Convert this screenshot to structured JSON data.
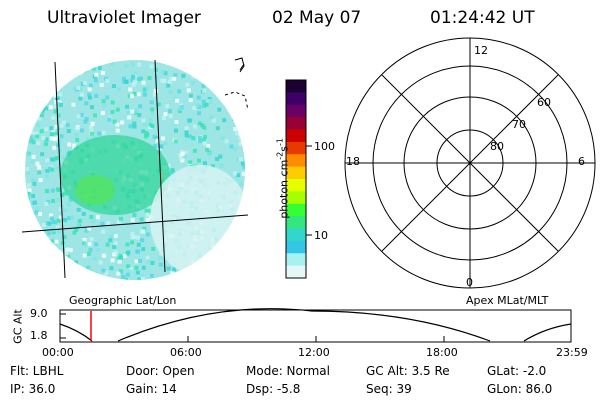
{
  "header": {
    "instrument": "Ultraviolet Imager",
    "date": "02 May 07",
    "time": "01:24:42 UT"
  },
  "colorbar": {
    "label": "photon cm",
    "label_exp1": "-2",
    "label_s": "s",
    "label_exp2": "-1",
    "tick_100": "100",
    "tick_10": "10",
    "colors": [
      "#1a0033",
      "#3d0066",
      "#6a0066",
      "#990033",
      "#cc0000",
      "#e83a00",
      "#ff8c00",
      "#ffcc00",
      "#e6ff00",
      "#a6ff00",
      "#33ff33",
      "#33e680",
      "#33d6cc",
      "#33c6e6",
      "#a6f2f2",
      "#e6f7f7"
    ]
  },
  "polar_plot": {
    "label_top": "12",
    "label_bottom": "0",
    "label_left": "18",
    "label_right": "6",
    "ring_labels": [
      "60",
      "70",
      "80"
    ]
  },
  "timeline": {
    "left_caption": "Geographic Lat/Lon",
    "right_caption": "Apex MLat/MLT",
    "axis_label": "GC Alt",
    "y_max": "9.0",
    "y_min": "1.8",
    "time_ticks": [
      "00:00",
      "06:00",
      "12:00",
      "18:00",
      "23:59"
    ],
    "current_marker_color": "#ff0000"
  },
  "status": {
    "flt": "Flt: LBHL",
    "ip": "IP: 36.0",
    "door": "Door: Open",
    "gain": "Gain: 14",
    "mode": "Mode: Normal",
    "dsp": "Dsp:   -5.8",
    "gcalt": "GC Alt: 3.5 Re",
    "seq": "Seq: 39",
    "glat": "GLat:  -2.0",
    "glon": "GLon:  86.0"
  }
}
